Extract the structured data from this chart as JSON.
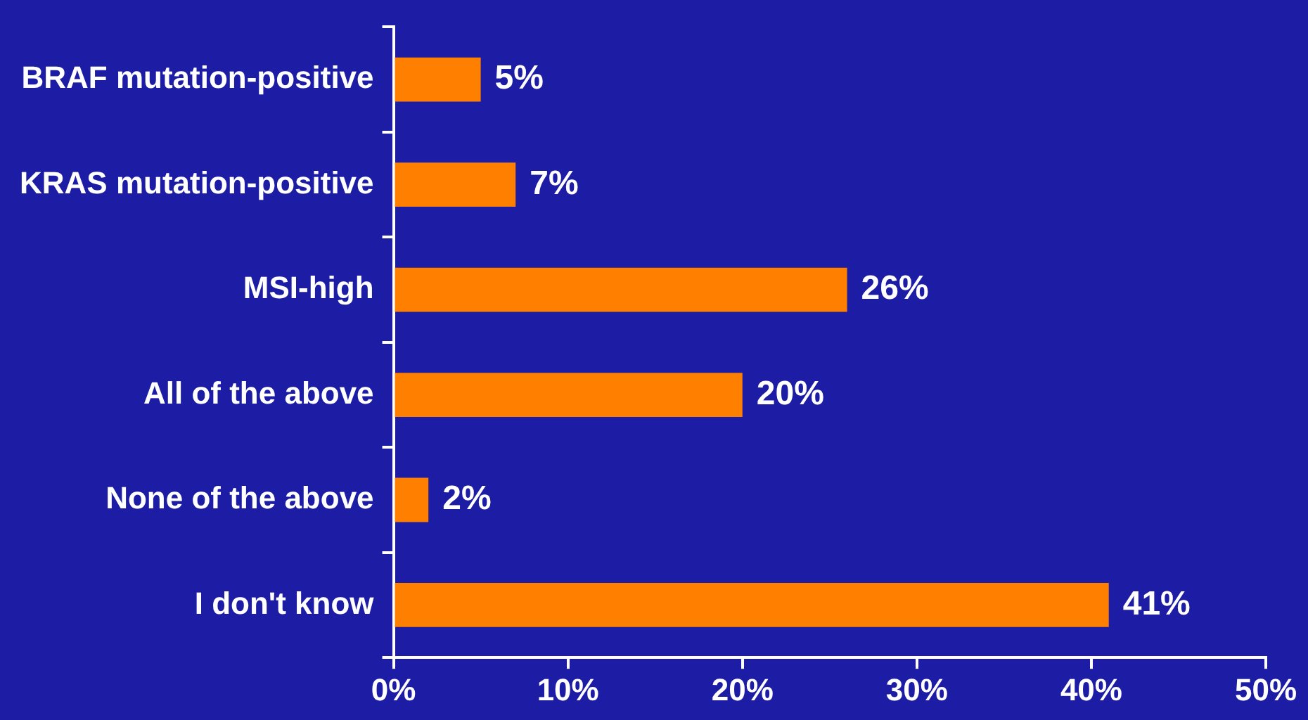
{
  "chart_data": {
    "type": "bar",
    "orientation": "horizontal",
    "categories": [
      "BRAF mutation-positive",
      "KRAS mutation-positive",
      "MSI-high",
      "All of the above",
      "None of the above",
      "I don't know"
    ],
    "values": [
      5,
      7,
      26,
      20,
      2,
      41
    ],
    "value_labels": [
      "5%",
      "7%",
      "26%",
      "20%",
      "2%",
      "41%"
    ],
    "color": "#ff8000",
    "xlim": [
      0,
      50
    ],
    "xticks": [
      {
        "value": 0,
        "label": "0%"
      },
      {
        "value": 10,
        "label": "10%"
      },
      {
        "value": 20,
        "label": "20%"
      },
      {
        "value": 30,
        "label": "30%"
      },
      {
        "value": 40,
        "label": "40%"
      },
      {
        "value": 50,
        "label": "50%"
      }
    ],
    "grid": false,
    "legend": false
  }
}
